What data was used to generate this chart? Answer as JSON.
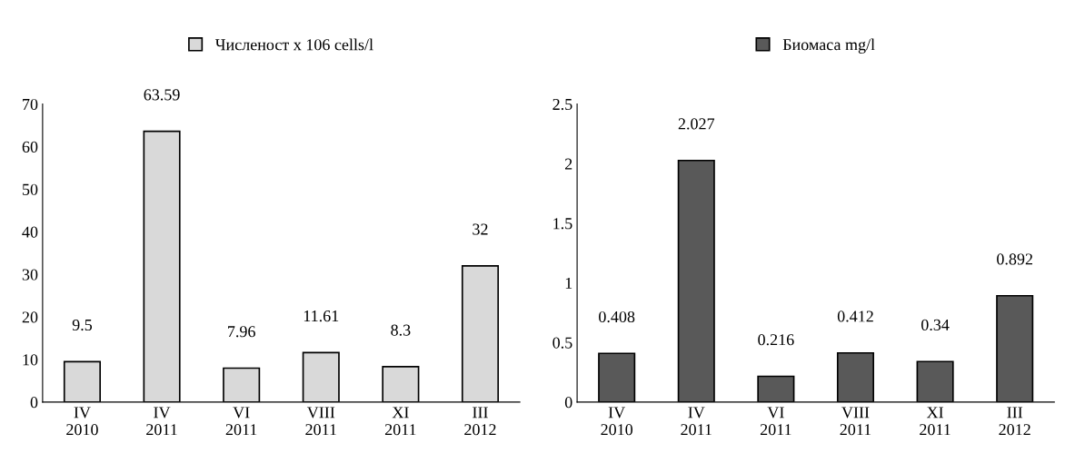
{
  "chart_data": [
    {
      "type": "bar",
      "categories": [
        "IV\n2010",
        "IV\n2011",
        "VI\n2011",
        "VIII\n2011",
        "XI\n2011",
        "III\n2012"
      ],
      "series": [
        {
          "name": "Численост x 106 cells/l",
          "color": "#d9d9d9",
          "values": [
            9.5,
            63.59,
            7.96,
            11.61,
            8.3,
            32
          ]
        }
      ],
      "ylim": [
        0,
        70
      ],
      "yticks": [
        0,
        10,
        20,
        30,
        40,
        50,
        60,
        70
      ],
      "data_labels": true,
      "legend": "top",
      "grid": false
    },
    {
      "type": "bar",
      "categories": [
        "IV\n2010",
        "IV\n2011",
        "VI\n2011",
        "VIII\n2011",
        "XI\n2011",
        "III\n2012"
      ],
      "series": [
        {
          "name": "Биомаса mg/l",
          "color": "#595959",
          "values": [
            0.408,
            2.027,
            0.216,
            0.412,
            0.34,
            0.892
          ]
        }
      ],
      "ylim": [
        0,
        2.5
      ],
      "yticks": [
        0,
        0.5,
        1,
        1.5,
        2,
        2.5
      ],
      "data_labels": true,
      "legend": "top",
      "grid": false
    }
  ]
}
